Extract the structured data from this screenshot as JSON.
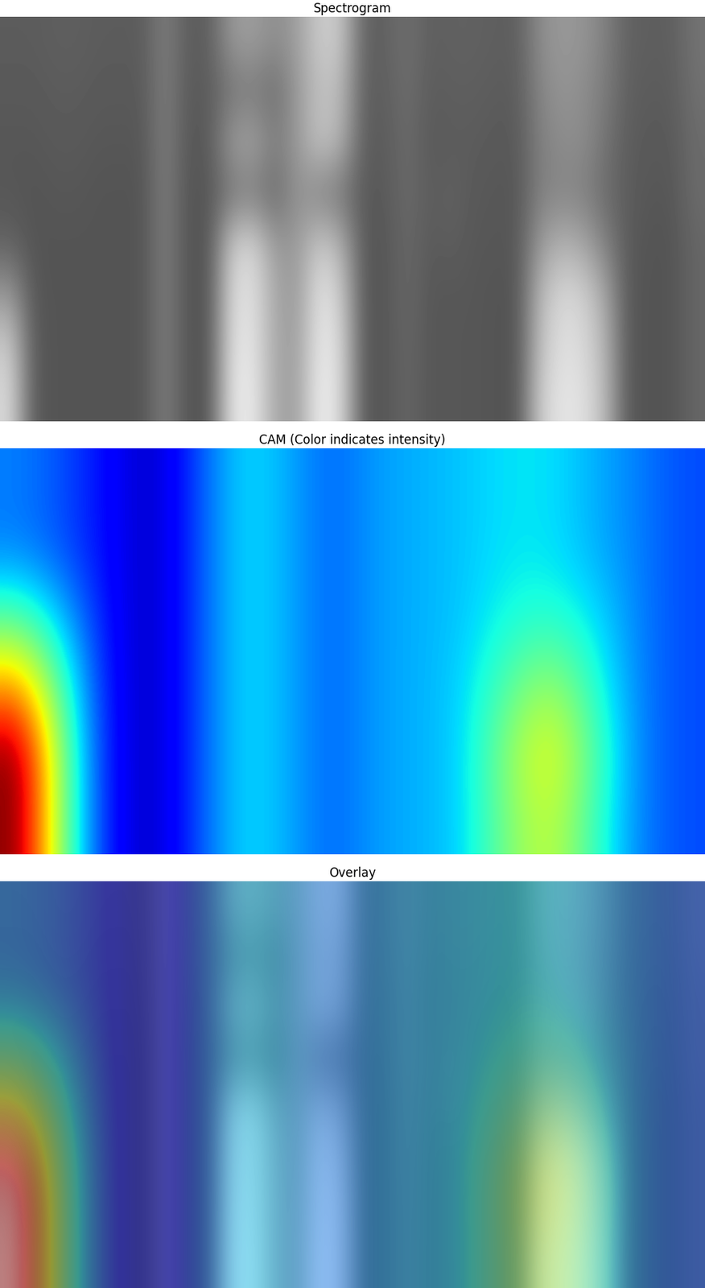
{
  "chart_data": [
    {
      "type": "heatmap",
      "title": "Spectrogram",
      "color": "gray",
      "tick_labels": false,
      "zlim": [
        0,
        1
      ],
      "cells": [
        [
          0.36,
          0.36,
          0.37,
          0.37,
          0.36,
          0.36,
          0.36,
          0.5,
          0.36,
          0.37,
          0.6,
          0.62,
          0.55,
          0.62,
          0.8,
          0.78,
          0.38,
          0.38,
          0.44,
          0.37,
          0.38,
          0.38,
          0.37,
          0.37,
          0.55,
          0.6,
          0.58,
          0.5,
          0.38,
          0.37,
          0.37,
          0.45
        ],
        [
          0.35,
          0.35,
          0.36,
          0.36,
          0.35,
          0.35,
          0.35,
          0.5,
          0.35,
          0.36,
          0.45,
          0.48,
          0.42,
          0.6,
          0.75,
          0.72,
          0.37,
          0.37,
          0.43,
          0.36,
          0.37,
          0.37,
          0.36,
          0.36,
          0.52,
          0.58,
          0.55,
          0.48,
          0.37,
          0.36,
          0.36,
          0.44
        ],
        [
          0.34,
          0.34,
          0.35,
          0.35,
          0.34,
          0.34,
          0.34,
          0.5,
          0.34,
          0.35,
          0.62,
          0.65,
          0.5,
          0.6,
          0.78,
          0.7,
          0.36,
          0.36,
          0.42,
          0.35,
          0.36,
          0.36,
          0.35,
          0.35,
          0.5,
          0.55,
          0.55,
          0.45,
          0.36,
          0.35,
          0.35,
          0.42
        ],
        [
          0.34,
          0.33,
          0.34,
          0.34,
          0.33,
          0.33,
          0.33,
          0.5,
          0.33,
          0.34,
          0.45,
          0.48,
          0.4,
          0.58,
          0.5,
          0.45,
          0.35,
          0.35,
          0.42,
          0.36,
          0.38,
          0.35,
          0.34,
          0.34,
          0.5,
          0.52,
          0.5,
          0.42,
          0.36,
          0.34,
          0.34,
          0.42
        ],
        [
          0.38,
          0.33,
          0.33,
          0.33,
          0.33,
          0.33,
          0.33,
          0.5,
          0.33,
          0.33,
          0.8,
          0.85,
          0.6,
          0.6,
          0.8,
          0.7,
          0.34,
          0.34,
          0.41,
          0.35,
          0.37,
          0.34,
          0.34,
          0.34,
          0.6,
          0.7,
          0.65,
          0.5,
          0.35,
          0.33,
          0.33,
          0.4
        ],
        [
          0.6,
          0.34,
          0.33,
          0.33,
          0.33,
          0.33,
          0.33,
          0.5,
          0.33,
          0.33,
          0.85,
          0.88,
          0.65,
          0.6,
          0.9,
          0.8,
          0.34,
          0.34,
          0.41,
          0.34,
          0.34,
          0.34,
          0.33,
          0.33,
          0.72,
          0.85,
          0.82,
          0.65,
          0.34,
          0.33,
          0.33,
          0.4
        ],
        [
          0.8,
          0.35,
          0.33,
          0.33,
          0.33,
          0.33,
          0.33,
          0.5,
          0.33,
          0.33,
          0.88,
          0.9,
          0.65,
          0.62,
          0.92,
          0.85,
          0.34,
          0.34,
          0.4,
          0.34,
          0.34,
          0.34,
          0.33,
          0.33,
          0.75,
          0.88,
          0.85,
          0.7,
          0.34,
          0.33,
          0.33,
          0.4
        ],
        [
          0.85,
          0.35,
          0.33,
          0.33,
          0.33,
          0.33,
          0.33,
          0.5,
          0.33,
          0.33,
          0.9,
          0.92,
          0.65,
          0.62,
          0.95,
          0.85,
          0.34,
          0.34,
          0.4,
          0.34,
          0.34,
          0.34,
          0.33,
          0.33,
          0.8,
          0.9,
          0.88,
          0.72,
          0.34,
          0.33,
          0.33,
          0.4
        ]
      ]
    },
    {
      "type": "heatmap",
      "title": "CAM (Color indicates intensity)",
      "color": "jet",
      "tick_labels": false,
      "zlim": [
        0,
        1
      ],
      "cells": [
        [
          0.25,
          0.2,
          0.12,
          0.05,
          0.2,
          0.35,
          0.3,
          0.22,
          0.28,
          0.3,
          0.32,
          0.35,
          0.35,
          0.3,
          0.25,
          0.2
        ],
        [
          0.25,
          0.2,
          0.12,
          0.05,
          0.2,
          0.35,
          0.3,
          0.22,
          0.28,
          0.3,
          0.32,
          0.35,
          0.35,
          0.3,
          0.25,
          0.2
        ],
        [
          0.45,
          0.3,
          0.12,
          0.05,
          0.2,
          0.35,
          0.3,
          0.22,
          0.28,
          0.3,
          0.32,
          0.38,
          0.4,
          0.35,
          0.25,
          0.2
        ],
        [
          0.75,
          0.4,
          0.12,
          0.05,
          0.2,
          0.35,
          0.3,
          0.22,
          0.28,
          0.3,
          0.33,
          0.45,
          0.55,
          0.4,
          0.25,
          0.2
        ],
        [
          1.0,
          0.45,
          0.12,
          0.05,
          0.2,
          0.35,
          0.3,
          0.22,
          0.28,
          0.3,
          0.33,
          0.52,
          0.65,
          0.45,
          0.25,
          0.2
        ],
        [
          1.0,
          0.45,
          0.12,
          0.05,
          0.2,
          0.35,
          0.3,
          0.22,
          0.28,
          0.3,
          0.33,
          0.5,
          0.6,
          0.42,
          0.25,
          0.2
        ]
      ]
    },
    {
      "type": "overlay",
      "title": "Overlay",
      "tick_labels": false
    }
  ]
}
